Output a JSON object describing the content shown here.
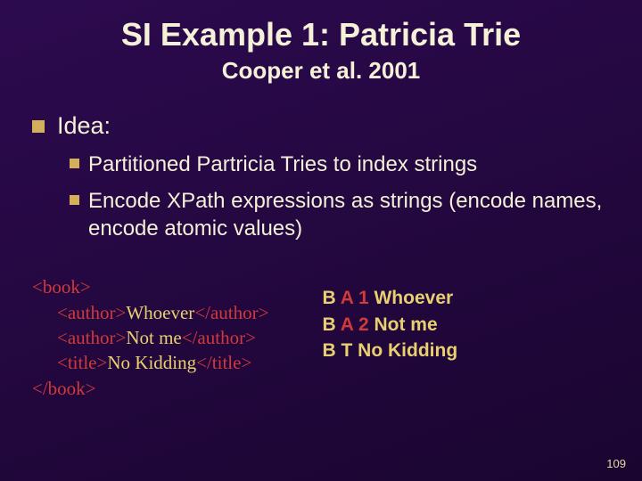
{
  "title": "SI Example 1: Patricia Trie",
  "subtitle": "Cooper et al. 2001",
  "idea_label": "Idea:",
  "sub_bullets": [
    "Partitioned Partricia Tries to index strings",
    "Encode XPath expressions as strings (encode names, encode atomic values)"
  ],
  "xml": {
    "open_book": "<book>",
    "author_open": "<author>",
    "author_close": "</author>",
    "title_open": "<title>",
    "title_close": "</title>",
    "close_book": "</book>",
    "author1_text": "Whoever",
    "author2_text": "Not me",
    "title_text": "No Kidding"
  },
  "encoded": [
    {
      "b": "B",
      "tag": "A",
      "num": "1",
      "val": "Whoever"
    },
    {
      "b": "B",
      "tag": "A",
      "num": "2",
      "val": "Not me"
    },
    {
      "b": "B",
      "tag": "T",
      "num": "",
      "val": "No Kidding"
    }
  ],
  "page_number": "109",
  "colors": {
    "bullet_square": "#d4b05a",
    "body_text": "#f5f0d8",
    "xml_tag": "#d03a3a",
    "xml_text": "#e8d070",
    "background": "#2a0a4a"
  }
}
